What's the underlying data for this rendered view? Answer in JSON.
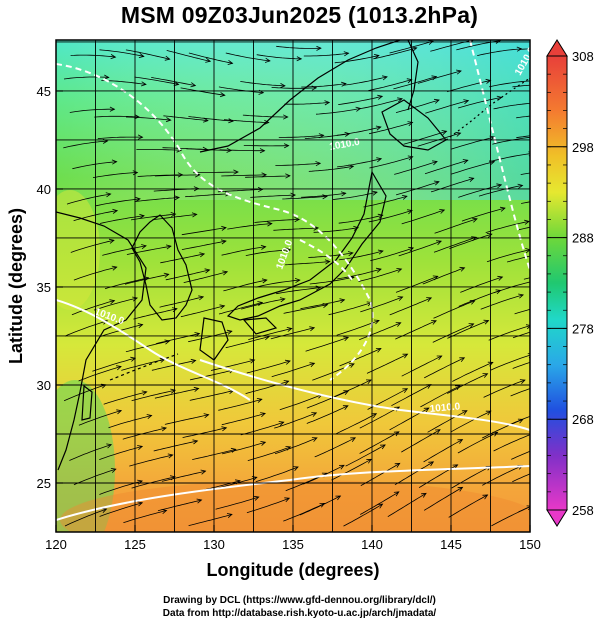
{
  "title": "MSM 09Z03Jun2025 (1013.2hPa)",
  "axes": {
    "xlabel": "Longitude (degrees)",
    "ylabel": "Latitude  (degrees)",
    "xlim": [
      120,
      150
    ],
    "ylim": [
      22.5,
      47.6
    ],
    "xticks": [
      "120",
      "125",
      "130",
      "135",
      "140",
      "145",
      "150"
    ],
    "yticks": [
      "25",
      "30",
      "35",
      "40",
      "45"
    ]
  },
  "colorbar": {
    "min": 258,
    "max": 308,
    "labels": [
      "308",
      "298",
      "288",
      "278",
      "268",
      "258"
    ]
  },
  "contour_labels": [
    "1010.0",
    "1010.0",
    "1010.0",
    "1010.0",
    "1010.0"
  ],
  "credits": {
    "line1": "Drawing by DCL (https://www.gfd-dennou.org/library/dcl/)",
    "line2": "Data from http://database.rish.kyoto-u.ac.jp/arch/jmadata/"
  },
  "colors": {
    "land": "#000000",
    "isobar": "#ffffff",
    "streamline": "#000000"
  }
}
